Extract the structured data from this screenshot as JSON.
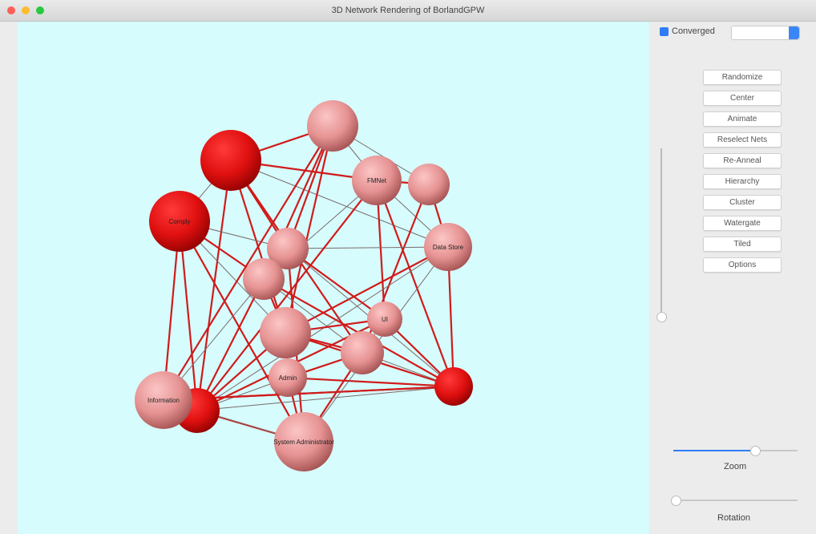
{
  "window": {
    "title": "3D Network Rendering of BorlandGPW"
  },
  "controls": {
    "converged": "Converged",
    "buttons": [
      "Randomize",
      "Center",
      "Animate",
      "Reselect Nets",
      "Re-Anneal",
      "Hierarchy",
      "Cluster",
      "Watergate",
      "Tiled",
      "Options"
    ],
    "zoom": "Zoom",
    "rotation": "Rotation"
  },
  "nodes": [
    {
      "label": "Comply"
    },
    {
      "label": "FMNet"
    },
    {
      "label": "Data Store"
    },
    {
      "label": "UI"
    },
    {
      "label": "Admin"
    },
    {
      "label": "Information"
    },
    {
      "label": "System Administrator"
    }
  ]
}
